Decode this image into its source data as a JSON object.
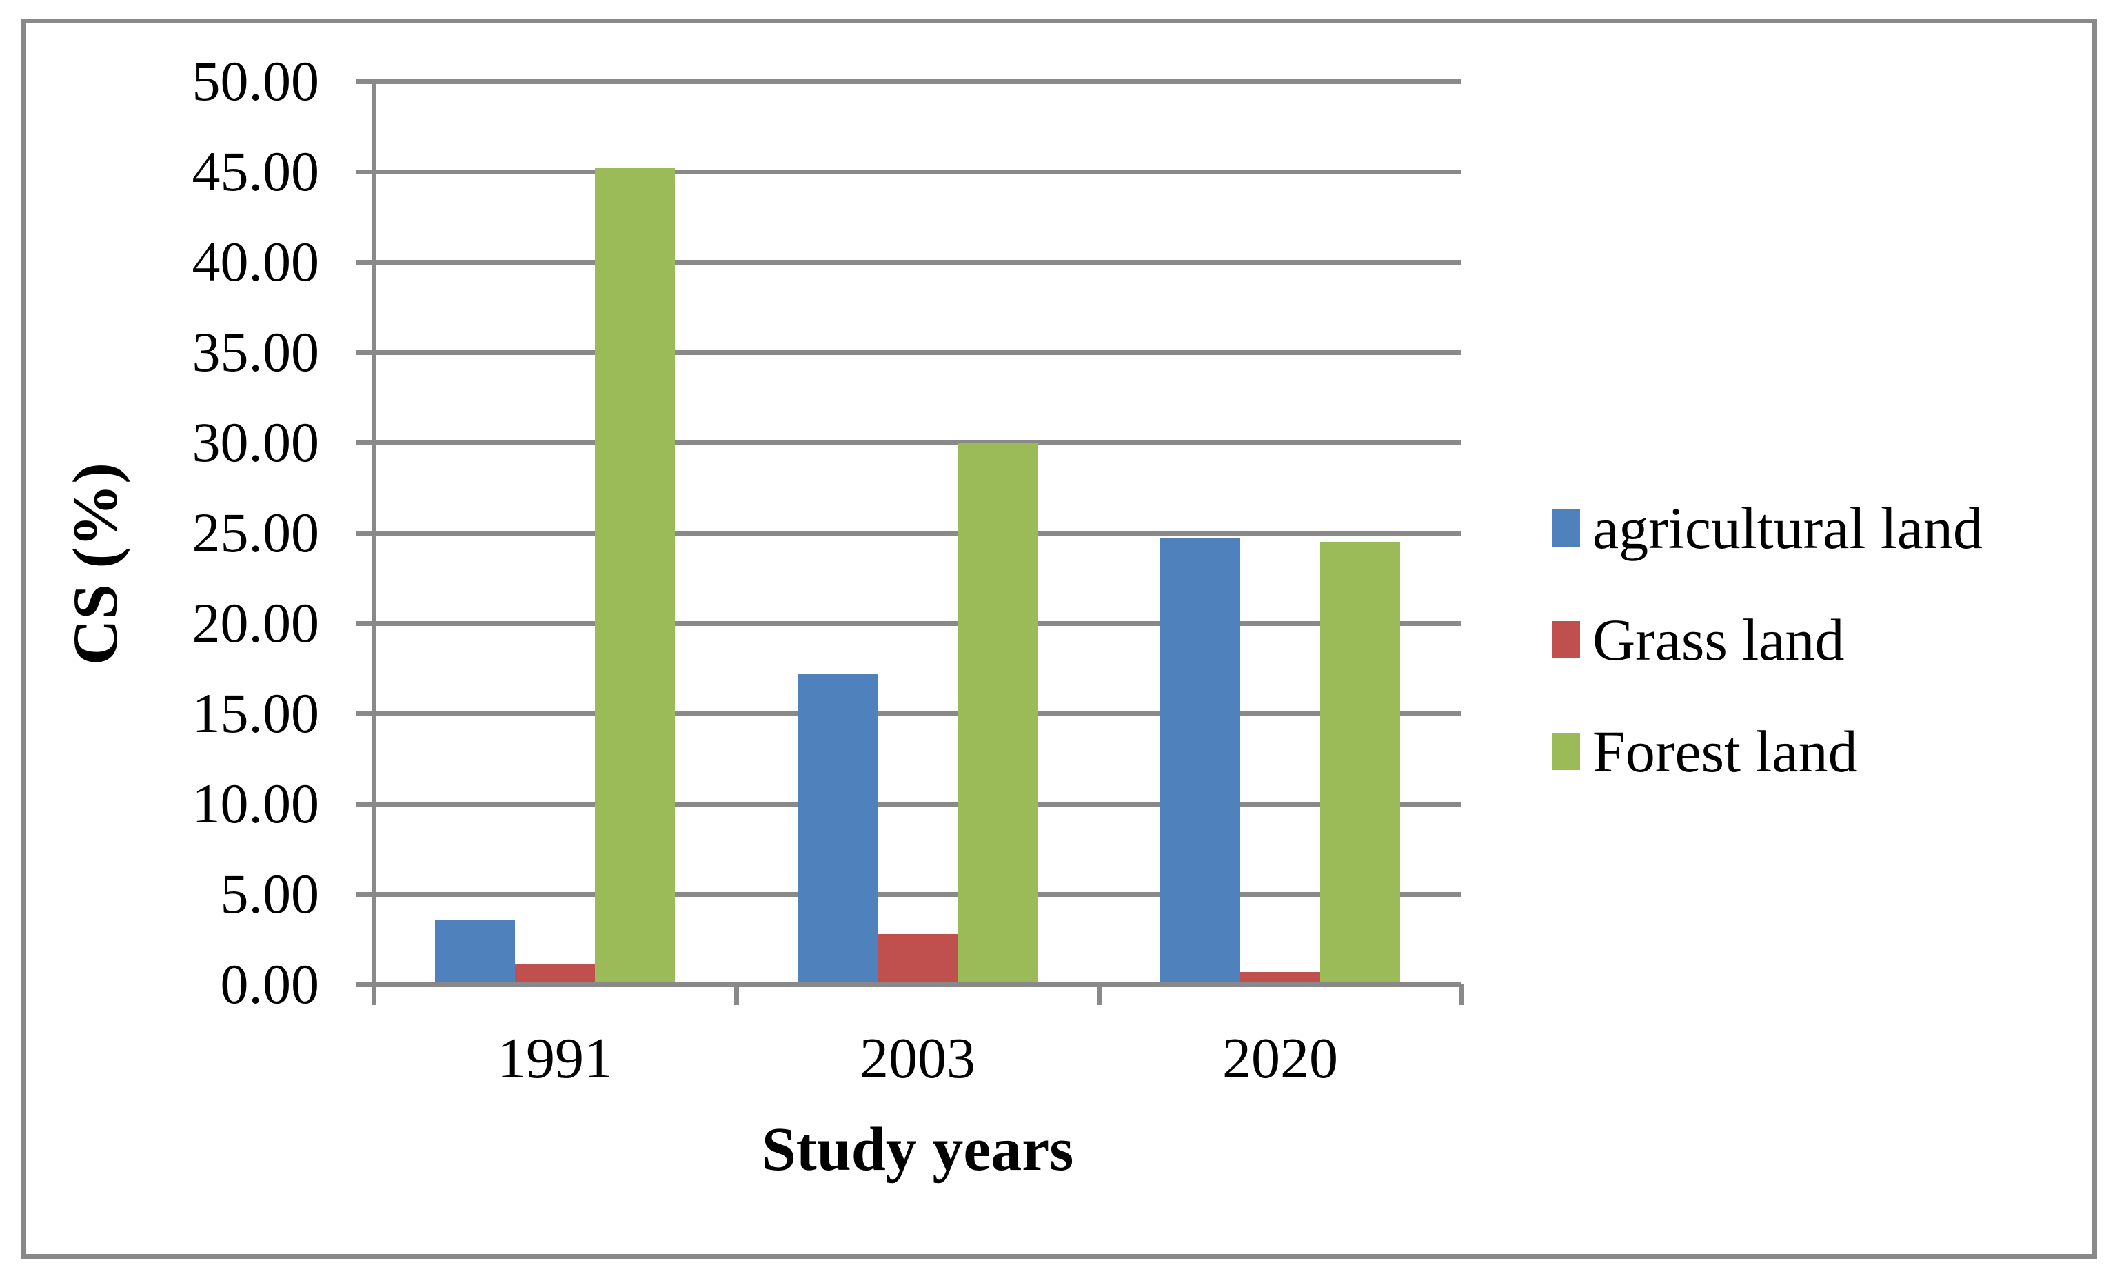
{
  "figure": {
    "background": "#FFFFFF",
    "border_color": "#898989",
    "grid_color": "#898989",
    "text_color": "#000000"
  },
  "chart_data": {
    "type": "bar",
    "title": "",
    "xlabel": "Study years",
    "ylabel": "CS (%)",
    "categories": [
      "1991",
      "2003",
      "2020"
    ],
    "series": [
      {
        "name": "agricultural land",
        "color": "#4F81BD",
        "values": [
          3.6,
          17.2,
          24.7
        ]
      },
      {
        "name": "Grass land",
        "color": "#C0504D",
        "values": [
          1.1,
          2.8,
          0.7
        ]
      },
      {
        "name": "Forest land",
        "color": "#9BBB59",
        "values": [
          45.2,
          30.0,
          24.5
        ]
      }
    ],
    "ylim": [
      0,
      50
    ],
    "y_tick_step": 5,
    "y_tick_labels": [
      "0.00",
      "5.00",
      "10.00",
      "15.00",
      "20.00",
      "25.00",
      "30.00",
      "35.00",
      "40.00",
      "45.00",
      "50.00"
    ],
    "grid": true,
    "legend_position": "right"
  }
}
